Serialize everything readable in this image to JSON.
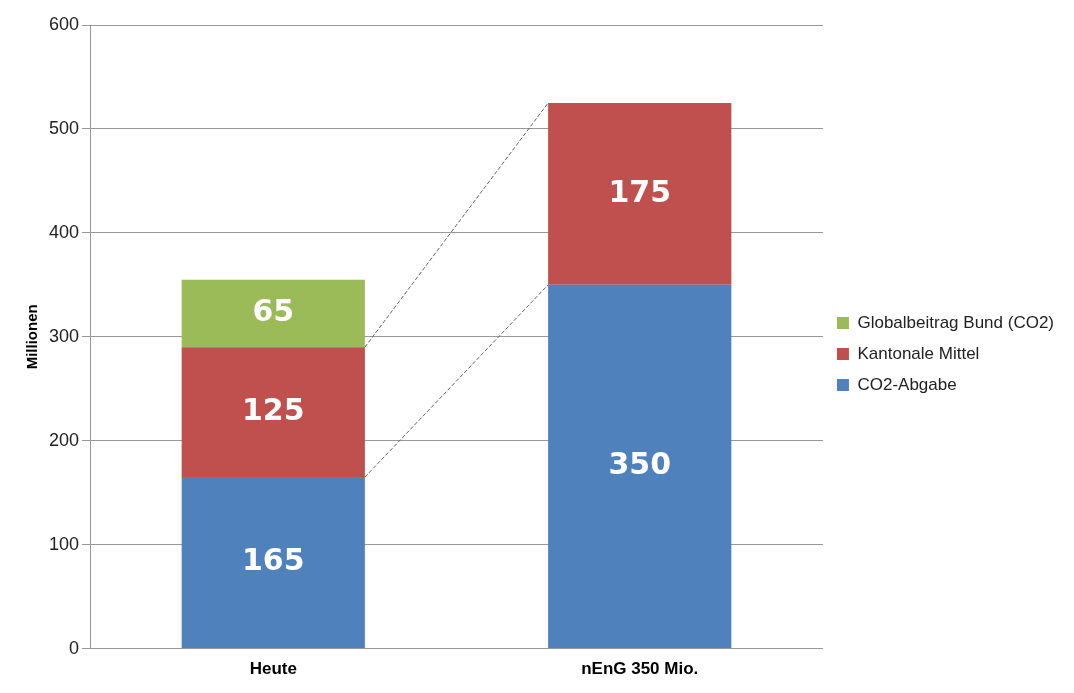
{
  "chart_data": {
    "type": "bar",
    "stacked": true,
    "ylabel": "Millionen",
    "categories": [
      "Heute",
      "nEnG 350 Mio."
    ],
    "series": [
      {
        "name": "CO2-Abgabe",
        "color": "#4f81bd",
        "values": [
          165,
          350
        ]
      },
      {
        "name": "Kantonale Mittel",
        "color": "#c0504d",
        "values": [
          125,
          175
        ]
      },
      {
        "name": "Globalbeitrag Bund (CO2)",
        "color": "#9bbb59",
        "values": [
          65,
          null
        ]
      }
    ],
    "ylim": [
      0,
      600
    ],
    "yticks": [
      0,
      100,
      200,
      300,
      400,
      500,
      600
    ],
    "grid": "y",
    "legend": "right",
    "data_labels": true
  }
}
